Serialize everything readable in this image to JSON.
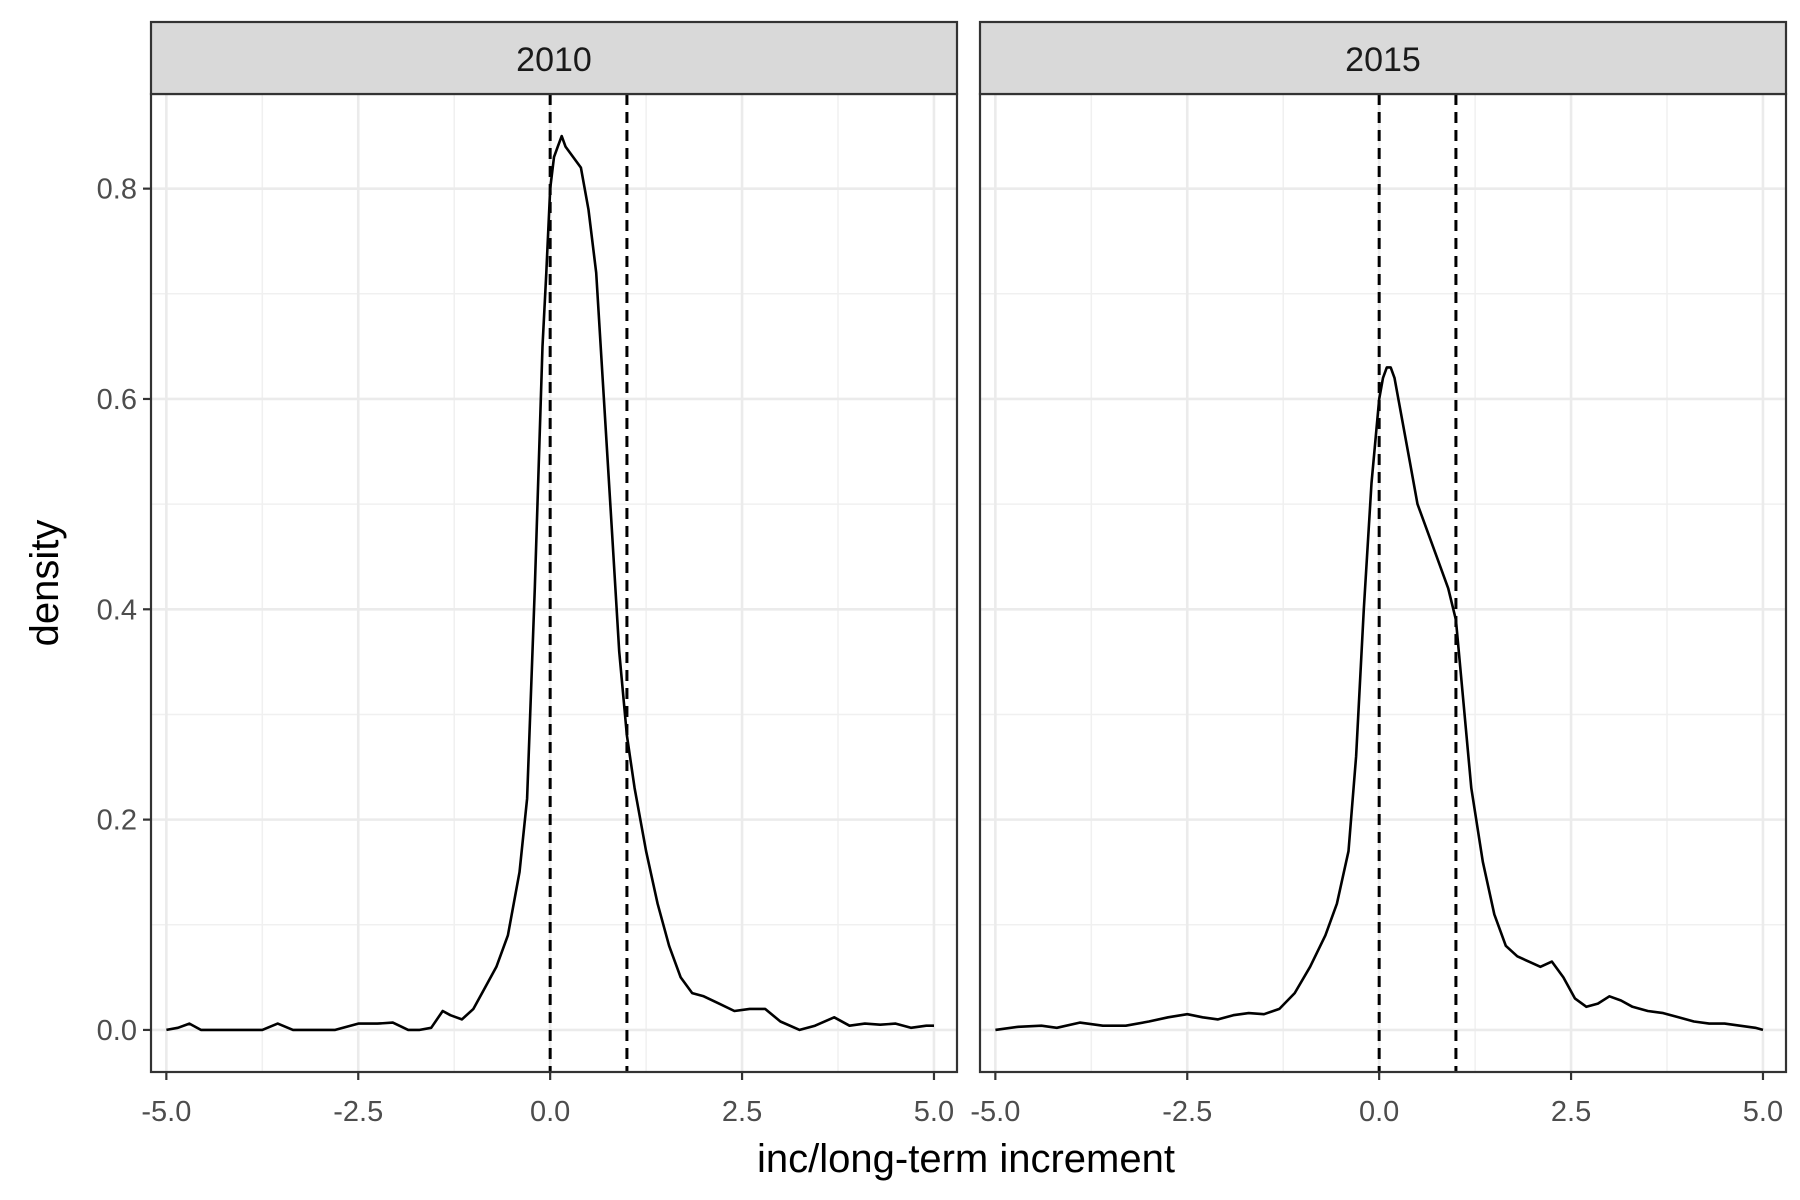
{
  "chart_data": {
    "type": "line",
    "xlabel": "inc/long-term increment",
    "ylabel": "density",
    "xlim": [
      -5.2,
      5.3
    ],
    "ylim": [
      -0.04,
      0.89
    ],
    "x_ticks": [
      -5.0,
      -2.5,
      0.0,
      2.5,
      5.0
    ],
    "x_tick_labels": [
      "-5.0",
      "-2.5",
      "0.0",
      "2.5",
      "5.0"
    ],
    "y_ticks": [
      0.0,
      0.2,
      0.4,
      0.6,
      0.8
    ],
    "y_tick_labels": [
      "0.0",
      "0.2",
      "0.4",
      "0.6",
      "0.8"
    ],
    "grid": true,
    "reference_lines": {
      "style": "dashed",
      "x": [
        0.0,
        1.0
      ]
    },
    "panels": [
      {
        "label": "2010",
        "x": [
          -5.0,
          -4.85,
          -4.7,
          -4.55,
          -4.3,
          -4.0,
          -3.75,
          -3.55,
          -3.35,
          -3.1,
          -2.8,
          -2.5,
          -2.25,
          -2.05,
          -1.85,
          -1.7,
          -1.55,
          -1.4,
          -1.3,
          -1.15,
          -1.0,
          -0.85,
          -0.7,
          -0.55,
          -0.4,
          -0.3,
          -0.2,
          -0.1,
          -0.05,
          0.0,
          0.05,
          0.1,
          0.15,
          0.2,
          0.3,
          0.4,
          0.5,
          0.6,
          0.7,
          0.8,
          0.9,
          1.0,
          1.1,
          1.25,
          1.4,
          1.55,
          1.7,
          1.85,
          2.0,
          2.2,
          2.4,
          2.6,
          2.8,
          3.0,
          3.25,
          3.45,
          3.7,
          3.9,
          4.1,
          4.3,
          4.5,
          4.7,
          4.9,
          5.0
        ],
        "y": [
          0.0,
          0.002,
          0.006,
          0.0,
          0.0,
          0.0,
          0.0,
          0.006,
          0.0,
          0.0,
          0.0,
          0.006,
          0.006,
          0.007,
          0.0,
          0.0,
          0.002,
          0.018,
          0.014,
          0.01,
          0.02,
          0.04,
          0.06,
          0.09,
          0.15,
          0.22,
          0.42,
          0.65,
          0.72,
          0.8,
          0.83,
          0.84,
          0.85,
          0.84,
          0.83,
          0.82,
          0.78,
          0.72,
          0.6,
          0.48,
          0.36,
          0.28,
          0.23,
          0.17,
          0.12,
          0.08,
          0.05,
          0.035,
          0.032,
          0.025,
          0.018,
          0.02,
          0.02,
          0.008,
          0.0,
          0.004,
          0.012,
          0.004,
          0.006,
          0.005,
          0.006,
          0.002,
          0.004,
          0.004
        ]
      },
      {
        "label": "2015",
        "x": [
          -5.0,
          -4.7,
          -4.4,
          -4.2,
          -3.9,
          -3.6,
          -3.3,
          -3.0,
          -2.75,
          -2.5,
          -2.3,
          -2.1,
          -1.9,
          -1.7,
          -1.5,
          -1.3,
          -1.1,
          -0.9,
          -0.7,
          -0.55,
          -0.4,
          -0.3,
          -0.2,
          -0.1,
          0.0,
          0.05,
          0.1,
          0.15,
          0.2,
          0.3,
          0.4,
          0.5,
          0.6,
          0.75,
          0.9,
          1.0,
          1.1,
          1.2,
          1.35,
          1.5,
          1.65,
          1.8,
          1.95,
          2.1,
          2.25,
          2.4,
          2.55,
          2.7,
          2.85,
          3.0,
          3.15,
          3.3,
          3.5,
          3.7,
          3.9,
          4.1,
          4.3,
          4.5,
          4.7,
          4.9,
          5.0
        ],
        "y": [
          0.0,
          0.003,
          0.004,
          0.002,
          0.007,
          0.004,
          0.004,
          0.008,
          0.012,
          0.015,
          0.012,
          0.01,
          0.014,
          0.016,
          0.015,
          0.02,
          0.035,
          0.06,
          0.09,
          0.12,
          0.17,
          0.26,
          0.4,
          0.52,
          0.6,
          0.62,
          0.63,
          0.63,
          0.62,
          0.58,
          0.54,
          0.5,
          0.48,
          0.45,
          0.42,
          0.39,
          0.31,
          0.23,
          0.16,
          0.11,
          0.08,
          0.07,
          0.065,
          0.06,
          0.065,
          0.05,
          0.03,
          0.022,
          0.025,
          0.032,
          0.028,
          0.022,
          0.018,
          0.016,
          0.012,
          0.008,
          0.006,
          0.006,
          0.004,
          0.002,
          0.0
        ]
      }
    ]
  }
}
